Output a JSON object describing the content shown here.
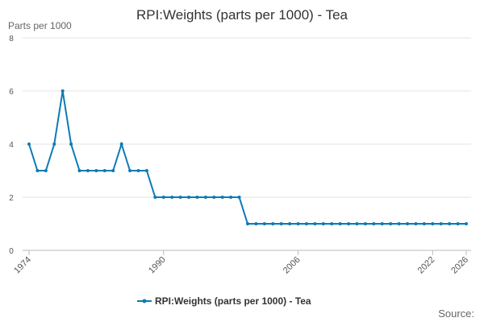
{
  "chart_data": {
    "type": "line",
    "title": "RPI:Weights (parts per 1000) - Tea",
    "y_label": "Parts per 1000",
    "source": "Source:",
    "x": [
      1974,
      1975,
      1976,
      1977,
      1978,
      1979,
      1980,
      1981,
      1982,
      1983,
      1984,
      1985,
      1986,
      1987,
      1988,
      1989,
      1990,
      1991,
      1992,
      1993,
      1994,
      1995,
      1996,
      1997,
      1998,
      1999,
      2000,
      2001,
      2002,
      2003,
      2004,
      2005,
      2006,
      2007,
      2008,
      2009,
      2010,
      2011,
      2012,
      2013,
      2014,
      2015,
      2016,
      2017,
      2018,
      2019,
      2020,
      2021,
      2022,
      2023,
      2024,
      2025,
      2026
    ],
    "series": [
      {
        "name": "RPI:Weights (parts per 1000) - Tea",
        "color": "#0b7bb5",
        "values": [
          4,
          3,
          3,
          4,
          6,
          4,
          3,
          3,
          3,
          3,
          3,
          4,
          3,
          3,
          3,
          2,
          2,
          2,
          2,
          2,
          2,
          2,
          2,
          2,
          2,
          2,
          1,
          1,
          1,
          1,
          1,
          1,
          1,
          1,
          1,
          1,
          1,
          1,
          1,
          1,
          1,
          1,
          1,
          1,
          1,
          1,
          1,
          1,
          1,
          1,
          1,
          1,
          1
        ]
      }
    ],
    "xlim": [
      1974,
      2026
    ],
    "xticks": [
      1974,
      1990,
      2006,
      2022,
      2026
    ],
    "ylim": [
      0,
      8
    ],
    "yticks": [
      0,
      2,
      4,
      6,
      8
    ],
    "grid": true
  }
}
